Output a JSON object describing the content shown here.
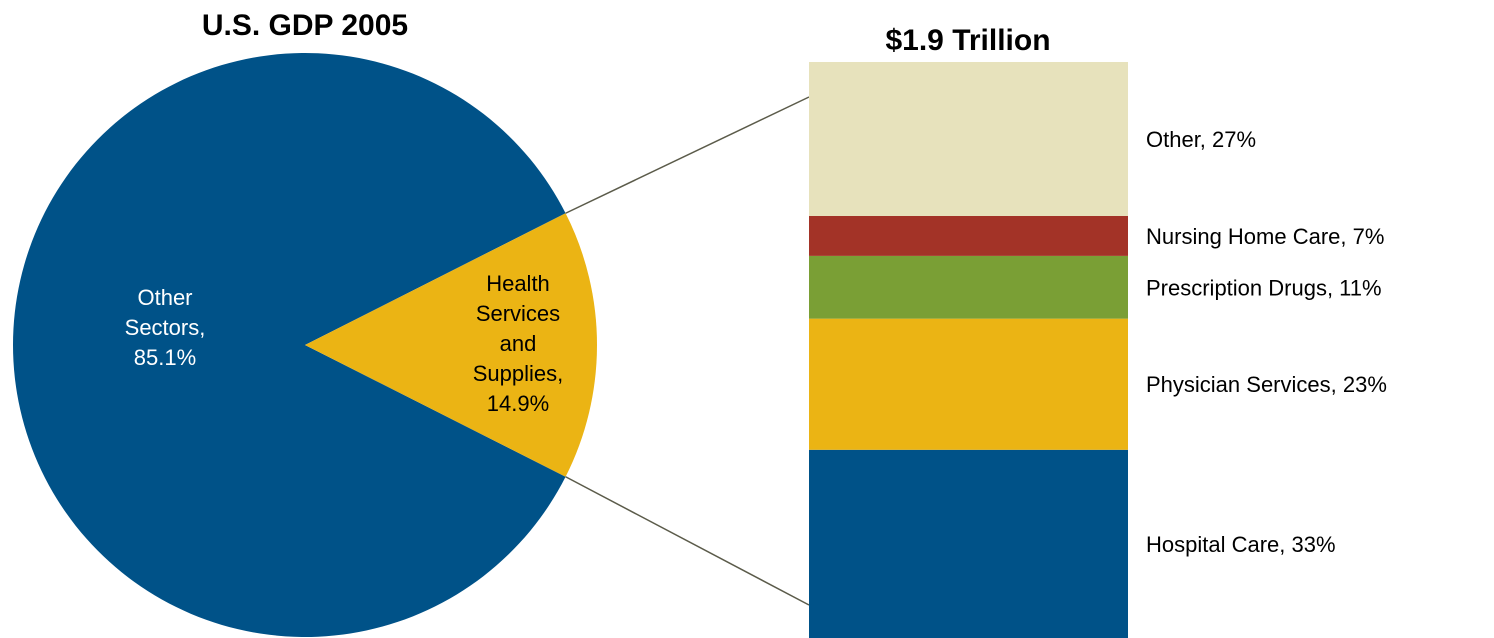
{
  "chart_data": [
    {
      "type": "pie",
      "title": "U.S. GDP 2005",
      "slices": [
        {
          "label_lines": [
            "Other",
            "Sectors,",
            "85.1%"
          ],
          "value": 85.1,
          "color": "#005288",
          "label_color": "#ffffff"
        },
        {
          "label_lines": [
            "Health",
            "Services",
            "and",
            "Supplies,",
            "14.9%"
          ],
          "value": 14.9,
          "color": "#EBB414",
          "label_color": "#000000"
        }
      ]
    },
    {
      "type": "bar",
      "stacked": true,
      "title": "$1.9 Trillion",
      "segments": [
        {
          "label": "Hospital Care, 33%",
          "value": 33,
          "color": "#005288"
        },
        {
          "label": "Physician Services, 23%",
          "value": 23,
          "color": "#EBB414"
        },
        {
          "label": "Prescription Drugs, 11%",
          "value": 11,
          "color": "#7A9F35"
        },
        {
          "label": "Nursing Home Care, 7%",
          "value": 7,
          "color": "#A33327"
        },
        {
          "label": "Other, 27%",
          "value": 27,
          "color": "#E7E2BC"
        }
      ]
    }
  ]
}
